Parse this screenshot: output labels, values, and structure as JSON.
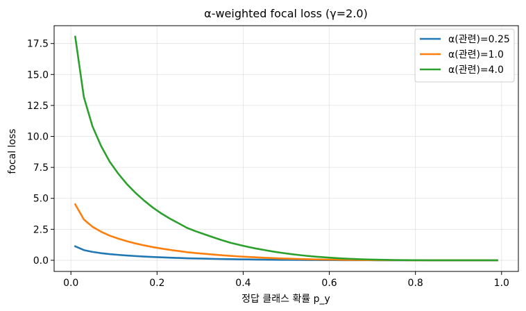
{
  "chart_data": {
    "type": "line",
    "title": "α-weighted focal loss (γ=2.0)",
    "xlabel": "정답 클래스 확률 p_y",
    "ylabel": "focal loss",
    "xlim": [
      -0.039,
      1.039
    ],
    "ylim": [
      -0.9,
      18.94
    ],
    "xticks": [
      0.0,
      0.2,
      0.4,
      0.6,
      0.8,
      1.0
    ],
    "xtick_labels": [
      "0.0",
      "0.2",
      "0.4",
      "0.6",
      "0.8",
      "1.0"
    ],
    "yticks": [
      0.0,
      2.5,
      5.0,
      7.5,
      10.0,
      12.5,
      15.0,
      17.5
    ],
    "ytick_labels": [
      "0.0",
      "2.5",
      "5.0",
      "7.5",
      "10.0",
      "12.5",
      "15.0",
      "17.5"
    ],
    "grid": true,
    "legend_position": "top-right",
    "x": [
      0.01,
      0.03,
      0.05,
      0.07,
      0.09,
      0.11,
      0.13,
      0.15,
      0.17,
      0.19,
      0.21,
      0.23,
      0.25,
      0.27,
      0.29,
      0.31,
      0.33,
      0.35,
      0.37,
      0.39,
      0.41,
      0.43,
      0.45,
      0.47,
      0.49,
      0.51,
      0.53,
      0.55,
      0.57,
      0.59,
      0.61,
      0.63,
      0.65,
      0.67,
      0.69,
      0.71,
      0.73,
      0.75,
      0.77,
      0.79,
      0.81,
      0.83,
      0.85,
      0.87,
      0.89,
      0.91,
      0.93,
      0.95,
      0.97,
      0.99
    ],
    "series": [
      {
        "name": "α(관련)=0.25",
        "color": "#1f77b4",
        "values": [
          1.128,
          0.824,
          0.676,
          0.577,
          0.497,
          0.437,
          0.385,
          0.34,
          0.301,
          0.266,
          0.237,
          0.21,
          0.187,
          0.163,
          0.146,
          0.131,
          0.116,
          0.102,
          0.089,
          0.078,
          0.068,
          0.059,
          0.051,
          0.044,
          0.037,
          0.032,
          0.026,
          0.022,
          0.018,
          0.015,
          0.012,
          0.009,
          0.007,
          0.005,
          0.004,
          0.003,
          0.002,
          0.001,
          0.001,
          0.0,
          0.0,
          0.0,
          0.0,
          0.0,
          0.0,
          0.0,
          0.0,
          0.0,
          0.0,
          0.0
        ]
      },
      {
        "name": "α(관련)=1.0",
        "color": "#ff7f0e",
        "values": [
          4.513,
          3.296,
          2.704,
          2.307,
          1.99,
          1.748,
          1.538,
          1.36,
          1.204,
          1.066,
          0.946,
          0.839,
          0.749,
          0.651,
          0.584,
          0.525,
          0.464,
          0.408,
          0.356,
          0.311,
          0.272,
          0.236,
          0.205,
          0.175,
          0.15,
          0.126,
          0.106,
          0.087,
          0.073,
          0.059,
          0.048,
          0.037,
          0.029,
          0.022,
          0.017,
          0.012,
          0.009,
          0.005,
          0.004,
          0.002,
          0.001,
          0.001,
          0.0,
          0.0,
          0.0,
          0.0,
          0.0,
          0.0,
          0.0,
          0.0
        ]
      },
      {
        "name": "α(관련)=4.0",
        "color": "#2ca02c",
        "values": [
          18.05,
          13.18,
          10.82,
          9.23,
          7.96,
          6.99,
          6.15,
          5.44,
          4.82,
          4.26,
          3.78,
          3.36,
          2.99,
          2.61,
          2.34,
          2.1,
          1.86,
          1.63,
          1.42,
          1.25,
          1.09,
          0.946,
          0.822,
          0.701,
          0.6,
          0.505,
          0.424,
          0.348,
          0.29,
          0.236,
          0.19,
          0.148,
          0.116,
          0.088,
          0.066,
          0.048,
          0.035,
          0.021,
          0.016,
          0.009,
          0.005,
          0.003,
          0.002,
          0.001,
          0.001,
          0.0,
          0.0,
          0.0,
          0.0,
          0.0
        ]
      }
    ]
  }
}
